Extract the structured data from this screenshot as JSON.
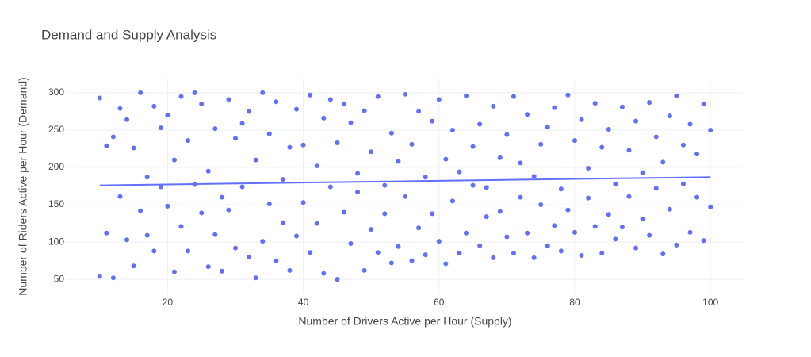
{
  "chart_data": {
    "type": "scatter",
    "title": "Demand and Supply Analysis",
    "x_label": "Number of Drivers Active per Hour (Supply)",
    "y_label": "Number of Riders Active per Hour (Demand)",
    "color": "#636efa",
    "grid": true,
    "xlim": [
      5,
      105
    ],
    "xticks": [
      20,
      40,
      60,
      80,
      100
    ],
    "ylim": [
      31,
      318
    ],
    "yticks": [
      50,
      100,
      150,
      200,
      250,
      300
    ],
    "x": [
      10,
      10,
      11,
      11,
      12,
      12,
      13,
      13,
      14,
      14,
      15,
      15,
      16,
      16,
      17,
      17,
      18,
      18,
      19,
      19,
      20,
      20,
      21,
      21,
      22,
      22,
      23,
      23,
      24,
      24,
      25,
      25,
      26,
      26,
      27,
      27,
      28,
      28,
      29,
      29,
      30,
      30,
      31,
      31,
      32,
      32,
      33,
      33,
      34,
      34,
      35,
      35,
      36,
      36,
      37,
      37,
      38,
      38,
      39,
      39,
      40,
      40,
      41,
      41,
      42,
      42,
      43,
      43,
      44,
      44,
      45,
      45,
      46,
      46,
      47,
      47,
      48,
      48,
      49,
      49,
      50,
      50,
      51,
      51,
      52,
      52,
      53,
      53,
      54,
      54,
      55,
      55,
      56,
      56,
      57,
      57,
      58,
      58,
      59,
      59,
      60,
      60,
      61,
      61,
      62,
      62,
      63,
      63,
      64,
      64,
      65,
      65,
      66,
      66,
      67,
      67,
      68,
      68,
      69,
      69,
      70,
      70,
      71,
      71,
      72,
      72,
      73,
      73,
      74,
      74,
      75,
      75,
      76,
      76,
      77,
      77,
      78,
      78,
      79,
      79,
      80,
      80,
      81,
      81,
      82,
      82,
      83,
      83,
      84,
      84,
      85,
      85,
      86,
      86,
      87,
      87,
      88,
      88,
      89,
      89,
      90,
      90,
      91,
      91,
      92,
      92,
      93,
      93,
      94,
      94,
      95,
      95,
      96,
      96,
      97,
      97,
      98,
      98,
      99,
      99,
      100,
      100
    ],
    "values": [
      293,
      54,
      229,
      112,
      241,
      52,
      279,
      161,
      264,
      103,
      226,
      68,
      300,
      142,
      187,
      109,
      282,
      88,
      174,
      253,
      270,
      148,
      210,
      60,
      295,
      121,
      236,
      88,
      177,
      300,
      285,
      139,
      195,
      67,
      252,
      110,
      160,
      61,
      291,
      143,
      239,
      92,
      174,
      259,
      275,
      80,
      210,
      52,
      300,
      101,
      245,
      151,
      288,
      75,
      184,
      126,
      227,
      62,
      278,
      108,
      153,
      230,
      297,
      86,
      202,
      125,
      266,
      58,
      174,
      291,
      233,
      50,
      140,
      285,
      260,
      98,
      192,
      167,
      276,
      62,
      221,
      117,
      295,
      86,
      176,
      138,
      246,
      72,
      208,
      94,
      298,
      161,
      231,
      75,
      275,
      119,
      187,
      83,
      262,
      138,
      291,
      101,
      211,
      71,
      250,
      155,
      194,
      85,
      296,
      112,
      228,
      176,
      258,
      95,
      173,
      134,
      282,
      79,
      213,
      141,
      244,
      107,
      295,
      85,
      160,
      206,
      271,
      112,
      188,
      79,
      231,
      150,
      254,
      95,
      280,
      122,
      171,
      88,
      297,
      143,
      236,
      113,
      264,
      82,
      199,
      159,
      286,
      121,
      227,
      85,
      251,
      137,
      178,
      104,
      281,
      120,
      223,
      161,
      262,
      92,
      193,
      131,
      287,
      109,
      241,
      172,
      207,
      84,
      269,
      144,
      296,
      96,
      230,
      178,
      258,
      113,
      218,
      160,
      285,
      102,
      250,
      147
    ],
    "trendline": {
      "x": [
        10,
        100
      ],
      "values": [
        176,
        187
      ]
    }
  }
}
